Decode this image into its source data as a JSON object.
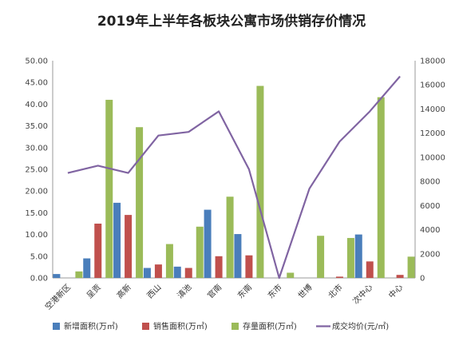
{
  "chart_data": {
    "type": "bar",
    "title": "2019年上半年各板块公寓市场供销存价情况",
    "categories": [
      "空港新区",
      "呈贡",
      "高新",
      "西山",
      "滇池",
      "官南",
      "东南",
      "东市",
      "世博",
      "北市",
      "次中心",
      "中心"
    ],
    "series": [
      {
        "name": "新增面积(万㎡)",
        "type": "bar",
        "axis": "left",
        "color": "#4a7ebb",
        "values": [
          0.9,
          4.5,
          17.3,
          2.3,
          2.6,
          15.7,
          10.1,
          0,
          0,
          0,
          10.0,
          0
        ]
      },
      {
        "name": "销售面积(万㎡)",
        "type": "bar",
        "axis": "left",
        "color": "#c0504d",
        "values": [
          0,
          12.5,
          14.5,
          3.1,
          2.3,
          5.0,
          5.2,
          0,
          0,
          0.3,
          3.8,
          0.7
        ]
      },
      {
        "name": "存量面积(万㎡)",
        "type": "bar",
        "axis": "left",
        "color": "#9bbb59",
        "values": [
          1.5,
          41.0,
          34.7,
          7.8,
          11.8,
          18.7,
          44.2,
          1.2,
          9.7,
          9.2,
          41.6,
          4.9
        ]
      },
      {
        "name": "成交均价(元/㎡)",
        "type": "line",
        "axis": "right",
        "color": "#8064a2",
        "values": [
          8700,
          9300,
          8700,
          11800,
          12100,
          13800,
          9000,
          0,
          7400,
          11300,
          13800,
          16700
        ]
      }
    ],
    "y_left": {
      "min": 0,
      "max": 50,
      "step": 5,
      "ticks": [
        "0.00",
        "5.00",
        "10.00",
        "15.00",
        "20.00",
        "25.00",
        "30.00",
        "35.00",
        "40.00",
        "45.00",
        "50.00"
      ]
    },
    "y_right": {
      "min": 0,
      "max": 18000,
      "step": 2000,
      "ticks": [
        "0",
        "2000",
        "4000",
        "6000",
        "8000",
        "10000",
        "12000",
        "14000",
        "16000",
        "18000"
      ]
    },
    "grid": false,
    "legend_position": "bottom"
  }
}
